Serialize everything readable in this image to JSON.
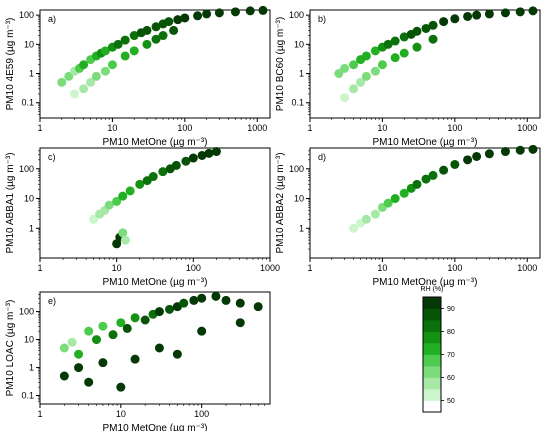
{
  "chart_data": [
    {
      "type": "scatter",
      "panel_label": "a)",
      "xlabel": "PM10 MetOne (µg m⁻³)",
      "ylabel": "PM10 4E59 (µg m⁻³)",
      "xscale": "log",
      "yscale": "log",
      "xlim": [
        1,
        1500
      ],
      "ylim": [
        0.03,
        150
      ],
      "xticks": [
        "1",
        "10",
        "100",
        "1000"
      ],
      "yticks": [
        "0.1",
        "1",
        "10",
        "100"
      ],
      "series": [
        {
          "x": [
            2,
            2.5,
            3,
            3.5,
            4,
            5,
            6,
            7,
            8,
            10,
            12,
            15,
            20,
            25,
            30,
            40,
            50,
            60,
            80,
            100,
            150,
            200,
            300,
            500,
            800,
            1200
          ],
          "y": [
            0.5,
            0.8,
            1.2,
            1.5,
            2,
            3,
            4,
            5,
            6,
            8,
            10,
            14,
            20,
            25,
            30,
            40,
            50,
            60,
            70,
            80,
            95,
            110,
            120,
            130,
            140,
            145
          ],
          "rh": [
            60,
            62,
            58,
            65,
            70,
            68,
            72,
            75,
            74,
            78,
            80,
            82,
            84,
            85,
            86,
            87,
            88,
            89,
            90,
            91,
            92,
            92,
            93,
            93,
            94,
            94
          ]
        },
        {
          "x": [
            3,
            4,
            5,
            6,
            8,
            10,
            15,
            20,
            30,
            40,
            50,
            70
          ],
          "y": [
            0.2,
            0.3,
            0.5,
            0.8,
            1.2,
            2,
            4,
            6,
            10,
            15,
            20,
            30
          ],
          "rh": [
            50,
            55,
            58,
            60,
            62,
            65,
            70,
            72,
            76,
            80,
            84,
            86
          ]
        }
      ]
    },
    {
      "type": "scatter",
      "panel_label": "b)",
      "xlabel": "PM10 MetOne (µg m⁻³)",
      "ylabel": "PM10 BC60 (µg m⁻³)",
      "xscale": "log",
      "yscale": "log",
      "xlim": [
        1,
        1500
      ],
      "ylim": [
        0.03,
        150
      ],
      "xticks": [
        "1",
        "10",
        "100",
        "1000"
      ],
      "yticks": [
        "0.1",
        "1",
        "10",
        "100"
      ],
      "series": [
        {
          "x": [
            2.5,
            3,
            4,
            5,
            6,
            8,
            10,
            12,
            15,
            20,
            25,
            30,
            40,
            50,
            70,
            100,
            150,
            200,
            300,
            500,
            800,
            1200
          ],
          "y": [
            1,
            1.5,
            2,
            3,
            4,
            6,
            8,
            10,
            13,
            18,
            22,
            28,
            35,
            45,
            60,
            75,
            90,
            100,
            110,
            120,
            130,
            140
          ],
          "rh": [
            62,
            64,
            66,
            70,
            72,
            74,
            78,
            80,
            82,
            84,
            86,
            87,
            88,
            89,
            90,
            91,
            92,
            92,
            93,
            93,
            94,
            94
          ]
        },
        {
          "x": [
            3,
            4,
            5,
            6,
            8,
            10,
            15,
            20,
            30,
            50
          ],
          "y": [
            0.15,
            0.3,
            0.5,
            0.8,
            1.2,
            2,
            3.5,
            5,
            8,
            15
          ],
          "rh": [
            52,
            55,
            58,
            60,
            63,
            66,
            70,
            74,
            78,
            82
          ]
        }
      ]
    },
    {
      "type": "scatter",
      "panel_label": "c)",
      "xlabel": "PM10 MetOne (µg m⁻³)",
      "ylabel": "PM10 ABBA1 (µg m⁻³)",
      "xscale": "log",
      "yscale": "log",
      "xlim": [
        1,
        1000
      ],
      "ylim": [
        0.1,
        500
      ],
      "xticks": [
        "1",
        "10",
        "100",
        "1000"
      ],
      "yticks": [
        "1",
        "10",
        "100"
      ],
      "series": [
        {
          "x": [
            5,
            6,
            7,
            8,
            10,
            12,
            15,
            20,
            25,
            30,
            40,
            50,
            60,
            80,
            100,
            130,
            160,
            200
          ],
          "y": [
            2,
            3,
            4,
            6,
            8,
            12,
            18,
            30,
            40,
            55,
            80,
            100,
            130,
            180,
            230,
            280,
            330,
            380
          ],
          "rh": [
            52,
            55,
            58,
            62,
            66,
            70,
            74,
            78,
            80,
            82,
            84,
            86,
            88,
            89,
            90,
            91,
            92,
            93
          ]
        },
        {
          "x": [
            10,
            11,
            12,
            13
          ],
          "y": [
            0.3,
            0.5,
            0.7,
            0.4
          ],
          "rh": [
            94,
            92,
            60,
            55
          ]
        }
      ]
    },
    {
      "type": "scatter",
      "panel_label": "d)",
      "xlabel": "PM10 MetOne (µg m⁻³)",
      "ylabel": "PM10 ABBA2 (µg m⁻³)",
      "xscale": "log",
      "yscale": "log",
      "xlim": [
        1,
        1500
      ],
      "ylim": [
        0.1,
        500
      ],
      "xticks": [
        "1",
        "10",
        "100",
        "1000"
      ],
      "yticks": [
        "1",
        "10",
        "100"
      ],
      "series": [
        {
          "x": [
            4,
            5,
            6,
            8,
            10,
            12,
            15,
            20,
            25,
            30,
            40,
            50,
            70,
            100,
            150,
            200,
            300,
            500,
            800,
            1200
          ],
          "y": [
            1,
            1.5,
            2,
            3,
            5,
            7,
            10,
            15,
            22,
            30,
            45,
            60,
            90,
            140,
            200,
            260,
            320,
            380,
            420,
            450
          ],
          "rh": [
            50,
            52,
            55,
            58,
            62,
            66,
            70,
            74,
            78,
            80,
            82,
            84,
            86,
            88,
            90,
            91,
            92,
            93,
            94,
            94
          ]
        }
      ]
    },
    {
      "type": "scatter",
      "panel_label": "e)",
      "xlabel": "PM10 MetOne (µg m⁻³)",
      "ylabel": "PM10 LOAC (µg m⁻³)",
      "xscale": "log",
      "yscale": "log",
      "xlim": [
        1,
        700
      ],
      "ylim": [
        0.05,
        500
      ],
      "xticks": [
        "1",
        "10",
        "100"
      ],
      "yticks": [
        "0.1",
        "1",
        "10",
        "100"
      ],
      "series": [
        {
          "x": [
            2,
            2.5,
            3,
            4,
            5,
            6,
            8,
            10,
            12,
            15,
            20,
            25,
            30,
            40,
            50,
            60,
            80,
            100,
            150,
            200,
            300,
            500
          ],
          "y": [
            5,
            8,
            3,
            20,
            10,
            30,
            15,
            40,
            25,
            60,
            50,
            80,
            100,
            120,
            150,
            200,
            250,
            300,
            350,
            250,
            200,
            150
          ],
          "rh": [
            60,
            55,
            70,
            65,
            75,
            68,
            80,
            72,
            85,
            78,
            88,
            82,
            90,
            86,
            92,
            88,
            93,
            90,
            94,
            92,
            93,
            94
          ]
        },
        {
          "x": [
            2,
            3,
            4,
            6,
            10,
            15,
            30,
            50,
            100,
            300
          ],
          "y": [
            0.5,
            1,
            0.3,
            1.5,
            0.2,
            2,
            5,
            3,
            20,
            40
          ],
          "rh": [
            94,
            94,
            94,
            94,
            94,
            94,
            94,
            94,
            94,
            94
          ]
        }
      ]
    }
  ],
  "colorbar": {
    "title": "RH (%)",
    "min": 45,
    "max": 95,
    "ticks": [
      "50",
      "60",
      "70",
      "80",
      "90"
    ],
    "colors": [
      "#ffffff",
      "#ccf5cc",
      "#a6e8a6",
      "#7bdc7b",
      "#4ccb4c",
      "#22b022",
      "#129112",
      "#0b710b",
      "#075407",
      "#043804"
    ]
  }
}
